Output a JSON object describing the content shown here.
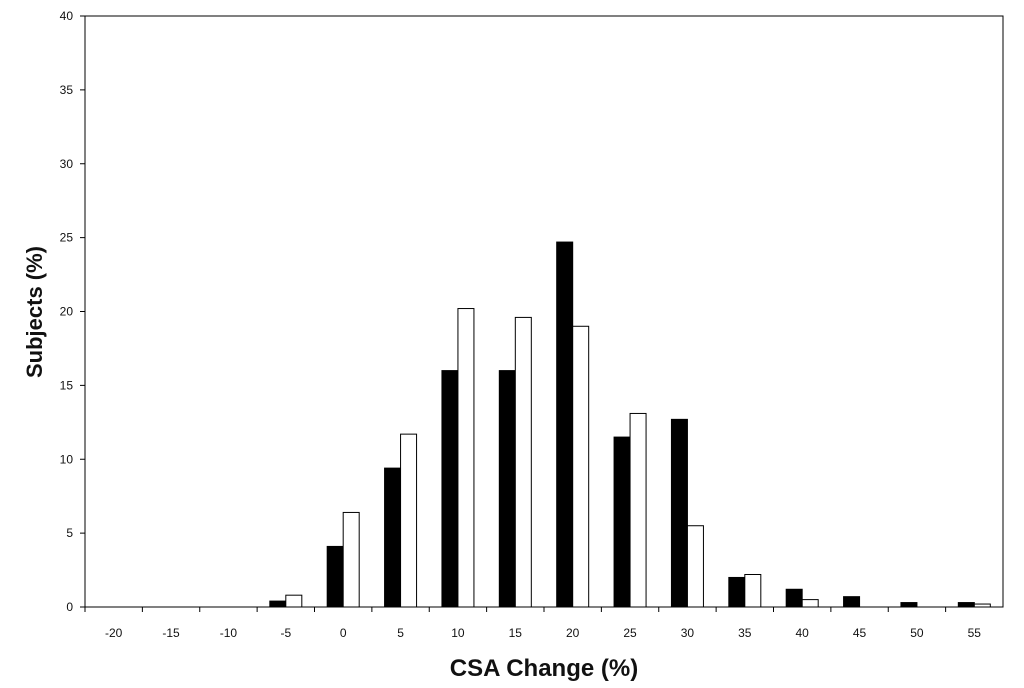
{
  "chart_data": {
    "type": "bar",
    "xlabel": "CSA Change (%)",
    "ylabel": "Subjects (%)",
    "ylim": [
      0,
      40
    ],
    "yticks": [
      "0",
      "5",
      "10",
      "15",
      "20",
      "25",
      "30",
      "35",
      "40"
    ],
    "categories": [
      "-20",
      "-15",
      "-10",
      "-5",
      "0",
      "5",
      "10",
      "15",
      "20",
      "25",
      "30",
      "35",
      "40",
      "45",
      "50",
      "55"
    ],
    "series": [
      {
        "color": "#000000",
        "values": [
          0,
          0,
          0,
          0.4,
          4.1,
          9.4,
          16.0,
          16.0,
          24.7,
          11.5,
          12.7,
          2.0,
          1.2,
          0.7,
          0.3,
          0.3
        ]
      },
      {
        "color": "#ffffff",
        "values": [
          0,
          0,
          0,
          0.8,
          6.4,
          11.7,
          20.2,
          19.6,
          19.0,
          13.1,
          5.5,
          2.2,
          0.5,
          0,
          0,
          0.2
        ]
      }
    ],
    "grid": false,
    "legend": "none"
  }
}
